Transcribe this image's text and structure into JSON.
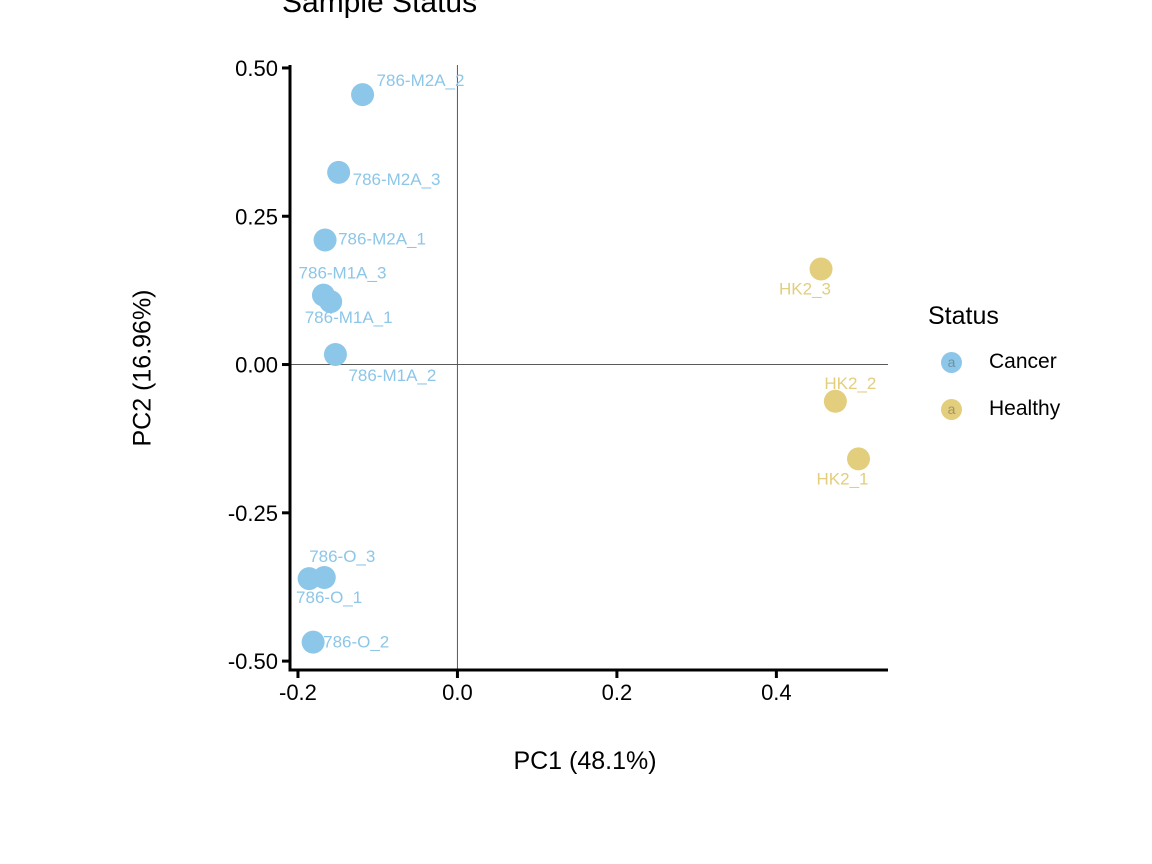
{
  "title": "Sample Status",
  "chart_data": {
    "type": "scatter",
    "title": "Sample Status",
    "xlabel": "PC1 (48.1%)",
    "ylabel": "PC2 (16.96%)",
    "xlim": [
      -0.21,
      0.54
    ],
    "ylim": [
      -0.515,
      0.505
    ],
    "x_ticks": [
      -0.2,
      0.0,
      0.2,
      0.4
    ],
    "x_tick_labels": [
      "-0.2",
      "0.0",
      "0.2",
      "0.4"
    ],
    "y_ticks": [
      0.5,
      0.25,
      0.0,
      -0.25,
      -0.5
    ],
    "y_tick_labels": [
      "0.50",
      "0.25",
      "0.00",
      "-0.25",
      "-0.50"
    ],
    "grid": false,
    "legend_position": "right",
    "reference_lines": {
      "vline_x": 0.0,
      "hline_y": 0.0
    },
    "series": [
      {
        "name": "Cancer",
        "color": "#8CC6E8",
        "points": [
          {
            "label": "786-M2A_2",
            "x": -0.119,
            "y": 0.455,
            "dx": 14,
            "dy": -14,
            "anchor": "start"
          },
          {
            "label": "786-M2A_3",
            "x": -0.149,
            "y": 0.324,
            "dx": 14,
            "dy": 7,
            "anchor": "start"
          },
          {
            "label": "786-M2A_1",
            "x": -0.166,
            "y": 0.21,
            "dx": 13,
            "dy": -1,
            "anchor": "start"
          },
          {
            "label": "786-M1A_3",
            "x": -0.168,
            "y": 0.117,
            "dx": 19,
            "dy": -22,
            "anchor": "middle"
          },
          {
            "label": "786-M1A_1",
            "x": -0.159,
            "y": 0.106,
            "dx": 18,
            "dy": 16,
            "anchor": "middle"
          },
          {
            "label": "786-M1A_2",
            "x": -0.153,
            "y": 0.017,
            "dx": 13,
            "dy": 21,
            "anchor": "start"
          },
          {
            "label": "786-O_3",
            "x": -0.167,
            "y": -0.359,
            "dx": 18,
            "dy": -21,
            "anchor": "middle"
          },
          {
            "label": "786-O_1",
            "x": -0.186,
            "y": -0.361,
            "dx": 20,
            "dy": 19,
            "anchor": "middle"
          },
          {
            "label": "786-O_2",
            "x": -0.181,
            "y": -0.468,
            "dx": 10,
            "dy": 0,
            "anchor": "start"
          }
        ]
      },
      {
        "name": "Healthy",
        "color": "#E2CE7C",
        "points": [
          {
            "label": "HK2_3",
            "x": 0.456,
            "y": 0.161,
            "dx": -16,
            "dy": 20,
            "anchor": "middle"
          },
          {
            "label": "HK2_2",
            "x": 0.474,
            "y": -0.062,
            "dx": 15,
            "dy": -18,
            "anchor": "middle"
          },
          {
            "label": "HK2_1",
            "x": 0.503,
            "y": -0.159,
            "dx": -16,
            "dy": 20,
            "anchor": "middle"
          }
        ]
      }
    ]
  },
  "legend": {
    "title": "Status",
    "key_glyph": "a",
    "items": [
      {
        "label": "Cancer",
        "color": "#8CC6E8"
      },
      {
        "label": "Healthy",
        "color": "#E2CE7C"
      }
    ]
  },
  "colors": {
    "axis": "#000000",
    "reference_line": "#595959",
    "background": "#FFFFFF",
    "cancer": "#8CC6E8",
    "healthy": "#E2CE7C"
  }
}
